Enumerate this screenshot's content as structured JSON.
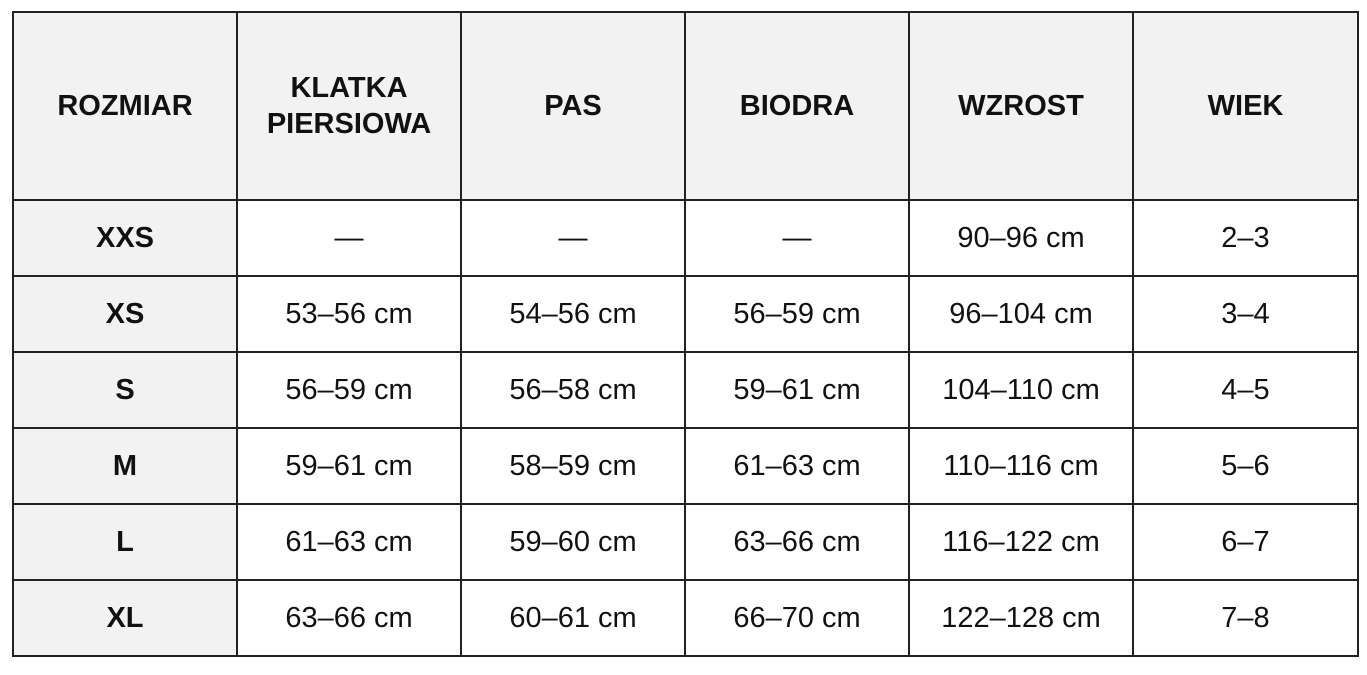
{
  "table": {
    "headers": [
      [
        "ROZMIAR"
      ],
      [
        "KLATKA",
        "PIERSIOWA"
      ],
      [
        "PAS"
      ],
      [
        "BIODRA"
      ],
      [
        "WZROST"
      ],
      [
        "WIEK"
      ]
    ],
    "rows": [
      [
        "XXS",
        "—",
        "—",
        "—",
        "90–96 cm",
        "2–3"
      ],
      [
        "XS",
        "53–56 cm",
        "54–56 cm",
        "56–59 cm",
        "96–104 cm",
        "3–4"
      ],
      [
        "S",
        "56–59 cm",
        "56–58 cm",
        "59–61 cm",
        "104–110 cm",
        "4–5"
      ],
      [
        "M",
        "59–61 cm",
        "58–59 cm",
        "61–63 cm",
        "110–116 cm",
        "5–6"
      ],
      [
        "L",
        "61–63 cm",
        "59–60 cm",
        "63–66 cm",
        "116–122 cm",
        "6–7"
      ],
      [
        "XL",
        "63–66 cm",
        "60–61 cm",
        "66–70 cm",
        "122–128 cm",
        "7–8"
      ]
    ]
  },
  "colors": {
    "header_bg": "#f2f2f2",
    "border": "#222222",
    "text": "#111111"
  }
}
